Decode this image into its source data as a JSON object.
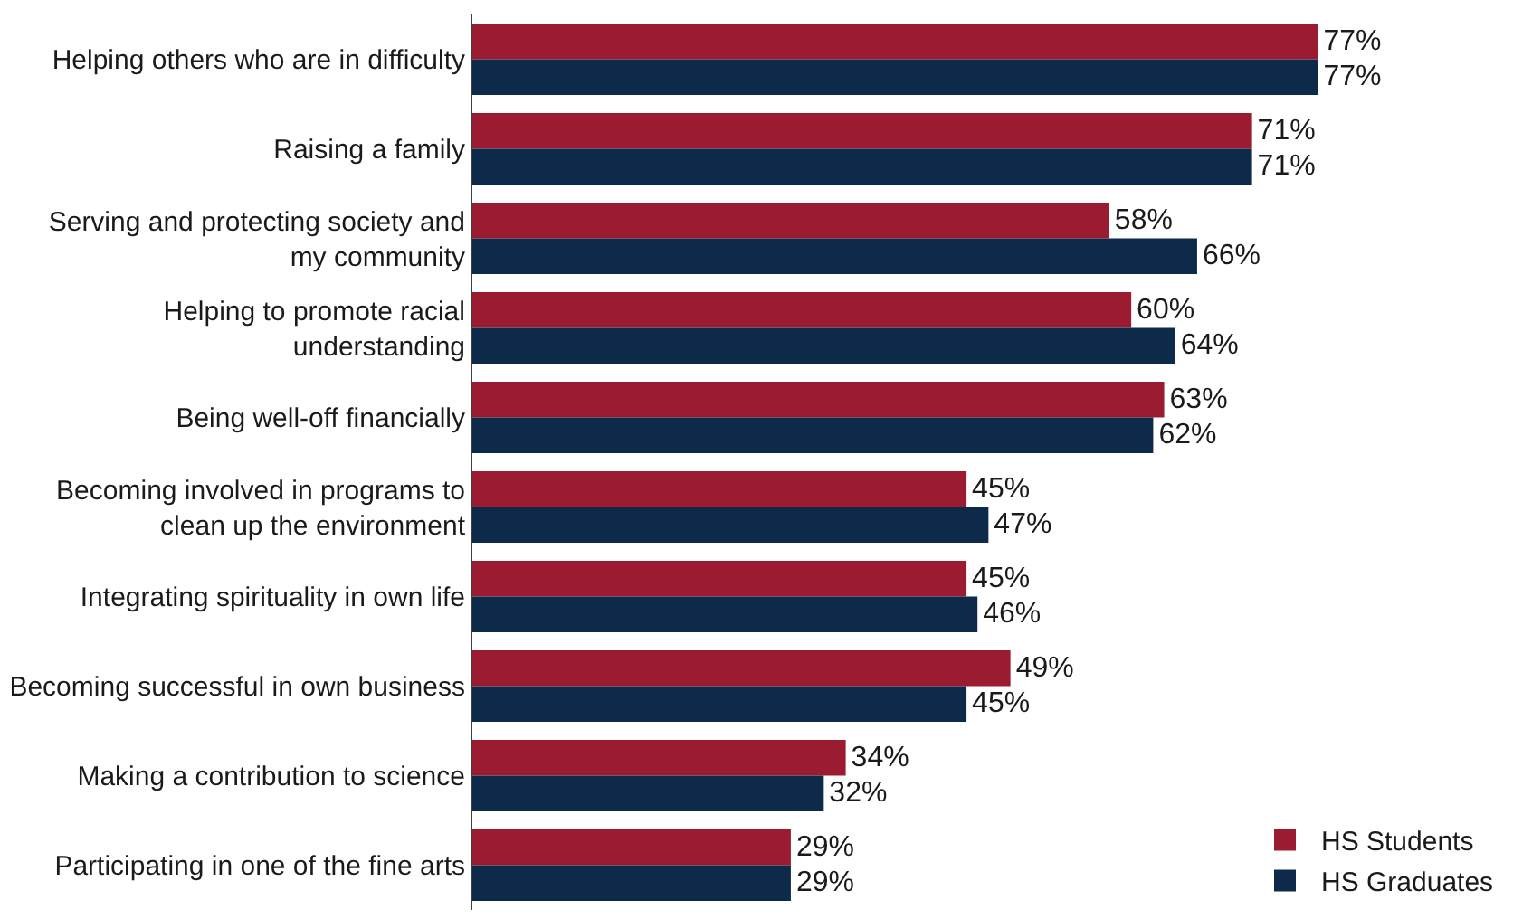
{
  "chart_data": {
    "type": "bar",
    "orientation": "horizontal",
    "legend": "bottom right",
    "categories": [
      "Helping others who are in difficulty",
      "Raising a family",
      "Serving and protecting society and my community",
      "Helping to promote racial understanding",
      "Being well-off financially",
      "Becoming involved in programs to clean up the environment",
      "Integrating spirituality in own life",
      "Becoming successful in own business",
      "Making a contribution to science",
      "Participating in one of the fine arts"
    ],
    "series": [
      {
        "name": "HS Students",
        "color": "#9b1b30",
        "values": [
          77,
          71,
          58,
          60,
          63,
          45,
          45,
          49,
          34,
          29
        ],
        "value_labels": [
          "77%",
          "71%",
          "58%",
          "60%",
          "63%",
          "45%",
          "45%",
          "49%",
          "34%",
          "29%"
        ]
      },
      {
        "name": "HS Graduates",
        "color": "#0d2a4a",
        "values": [
          77,
          71,
          66,
          64,
          62,
          47,
          46,
          45,
          32,
          29
        ],
        "value_labels": [
          "77%",
          "71%",
          "66%",
          "64%",
          "62%",
          "47%",
          "46%",
          "45%",
          "32%",
          "29%"
        ]
      }
    ]
  }
}
